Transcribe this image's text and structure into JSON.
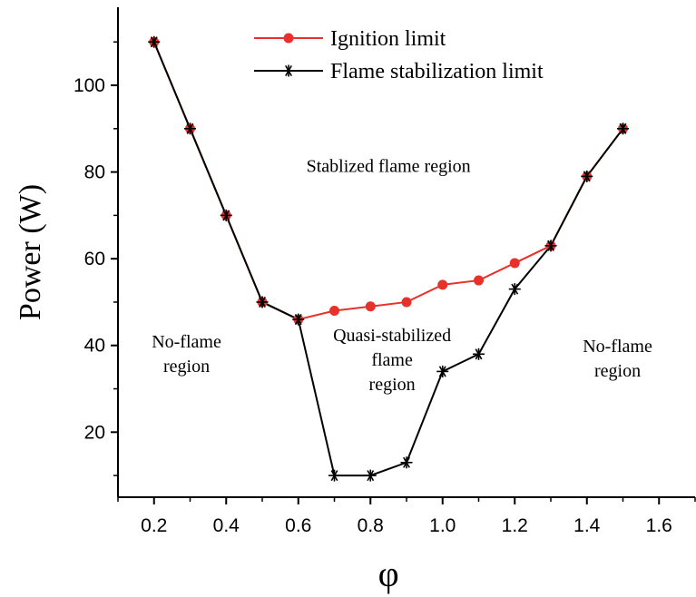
{
  "chart_data": {
    "type": "line",
    "title": "",
    "xlabel": "φ",
    "ylabel": "Power (W)",
    "xlim": [
      0.1,
      1.7
    ],
    "ylim": [
      5,
      118
    ],
    "x_ticks": [
      0.2,
      0.4,
      0.6,
      0.8,
      1.0,
      1.2,
      1.4,
      1.6
    ],
    "x_tick_labels": [
      "0.2",
      "0.4",
      "0.6",
      "0.8",
      "1.0",
      "1.2",
      "1.4",
      "1.6"
    ],
    "y_ticks": [
      20,
      40,
      60,
      80,
      100
    ],
    "y_tick_labels": [
      "20",
      "40",
      "60",
      "80",
      "100"
    ],
    "grid": false,
    "legend_position": "top-center",
    "series": [
      {
        "name": "Ignition limit",
        "color": "#e8312a",
        "marker": "circle",
        "x": [
          0.2,
          0.3,
          0.4,
          0.5,
          0.6,
          0.7,
          0.8,
          0.9,
          1.0,
          1.1,
          1.2,
          1.3,
          1.4,
          1.5
        ],
        "y": [
          110,
          90,
          70,
          50,
          46,
          48,
          49,
          50,
          54,
          55,
          59,
          63,
          79,
          90
        ]
      },
      {
        "name": "Flame stabilization limit",
        "color": "#000000",
        "marker": "asterisk",
        "x": [
          0.2,
          0.3,
          0.4,
          0.5,
          0.6,
          0.7,
          0.8,
          0.9,
          1.0,
          1.1,
          1.2,
          1.3,
          1.4,
          1.5
        ],
        "y": [
          110,
          90,
          70,
          50,
          46,
          10,
          10,
          13,
          34,
          38,
          53,
          63,
          79,
          90
        ]
      }
    ],
    "annotations": [
      {
        "lines": [
          "Stablized flame region"
        ],
        "x": 0.85,
        "y": 80
      },
      {
        "lines": [
          "No-flame",
          "region"
        ],
        "x": 0.29,
        "y": 39.5
      },
      {
        "lines": [
          "Quasi-stabilized",
          "flame",
          "region"
        ],
        "x": 0.86,
        "y": 41
      },
      {
        "lines": [
          "No-flame",
          "region"
        ],
        "x": 1.485,
        "y": 38.5
      }
    ]
  }
}
